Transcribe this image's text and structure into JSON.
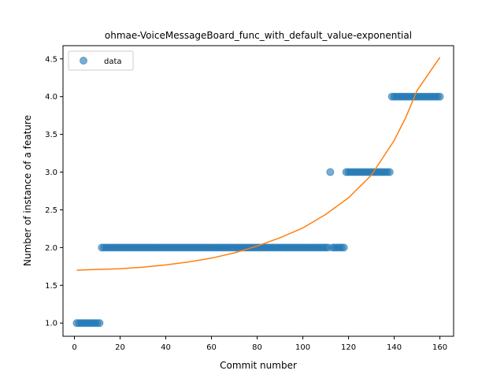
{
  "chart_data": {
    "type": "scatter",
    "title": "ohmae-VoiceMessageBoard_func_with_default_value-exponential",
    "xlabel": "Commit number",
    "ylabel": "Number of instance of a feature",
    "xlim": [
      -5,
      166
    ],
    "ylim": [
      0.825,
      4.675
    ],
    "xticks": [
      0,
      20,
      40,
      60,
      80,
      100,
      120,
      140,
      160
    ],
    "yticks": [
      1.0,
      1.5,
      2.0,
      2.5,
      3.0,
      3.5,
      4.0,
      4.5
    ],
    "legend": {
      "position": "top-left",
      "entries": [
        "data"
      ]
    },
    "colors": {
      "data": "#1f77b4",
      "fit": "#ff7f0e"
    },
    "series": [
      {
        "name": "data",
        "kind": "scatter",
        "points": [
          [
            1,
            1
          ],
          [
            2,
            1
          ],
          [
            3,
            1
          ],
          [
            4,
            1
          ],
          [
            5,
            1
          ],
          [
            6,
            1
          ],
          [
            7,
            1
          ],
          [
            8,
            1
          ],
          [
            9,
            1
          ],
          [
            10,
            1
          ],
          [
            11,
            1
          ],
          [
            12,
            2
          ],
          [
            13,
            2
          ],
          [
            14,
            2
          ],
          [
            15,
            2
          ],
          [
            16,
            2
          ],
          [
            17,
            2
          ],
          [
            18,
            2
          ],
          [
            19,
            2
          ],
          [
            20,
            2
          ],
          [
            21,
            2
          ],
          [
            22,
            2
          ],
          [
            23,
            2
          ],
          [
            24,
            2
          ],
          [
            25,
            2
          ],
          [
            26,
            2
          ],
          [
            27,
            2
          ],
          [
            28,
            2
          ],
          [
            29,
            2
          ],
          [
            30,
            2
          ],
          [
            31,
            2
          ],
          [
            32,
            2
          ],
          [
            33,
            2
          ],
          [
            34,
            2
          ],
          [
            35,
            2
          ],
          [
            36,
            2
          ],
          [
            37,
            2
          ],
          [
            38,
            2
          ],
          [
            39,
            2
          ],
          [
            40,
            2
          ],
          [
            41,
            2
          ],
          [
            42,
            2
          ],
          [
            43,
            2
          ],
          [
            44,
            2
          ],
          [
            45,
            2
          ],
          [
            46,
            2
          ],
          [
            47,
            2
          ],
          [
            48,
            2
          ],
          [
            49,
            2
          ],
          [
            50,
            2
          ],
          [
            51,
            2
          ],
          [
            52,
            2
          ],
          [
            53,
            2
          ],
          [
            54,
            2
          ],
          [
            55,
            2
          ],
          [
            56,
            2
          ],
          [
            57,
            2
          ],
          [
            58,
            2
          ],
          [
            59,
            2
          ],
          [
            60,
            2
          ],
          [
            61,
            2
          ],
          [
            62,
            2
          ],
          [
            63,
            2
          ],
          [
            64,
            2
          ],
          [
            65,
            2
          ],
          [
            66,
            2
          ],
          [
            67,
            2
          ],
          [
            68,
            2
          ],
          [
            69,
            2
          ],
          [
            70,
            2
          ],
          [
            71,
            2
          ],
          [
            72,
            2
          ],
          [
            73,
            2
          ],
          [
            74,
            2
          ],
          [
            75,
            2
          ],
          [
            76,
            2
          ],
          [
            77,
            2
          ],
          [
            78,
            2
          ],
          [
            79,
            2
          ],
          [
            80,
            2
          ],
          [
            81,
            2
          ],
          [
            82,
            2
          ],
          [
            83,
            2
          ],
          [
            84,
            2
          ],
          [
            85,
            2
          ],
          [
            86,
            2
          ],
          [
            87,
            2
          ],
          [
            88,
            2
          ],
          [
            89,
            2
          ],
          [
            90,
            2
          ],
          [
            91,
            2
          ],
          [
            92,
            2
          ],
          [
            93,
            2
          ],
          [
            94,
            2
          ],
          [
            95,
            2
          ],
          [
            96,
            2
          ],
          [
            97,
            2
          ],
          [
            98,
            2
          ],
          [
            99,
            2
          ],
          [
            100,
            2
          ],
          [
            101,
            2
          ],
          [
            102,
            2
          ],
          [
            103,
            2
          ],
          [
            104,
            2
          ],
          [
            105,
            2
          ],
          [
            106,
            2
          ],
          [
            107,
            2
          ],
          [
            108,
            2
          ],
          [
            109,
            2
          ],
          [
            110,
            2
          ],
          [
            111,
            2
          ],
          [
            112,
            3
          ],
          [
            113,
            2
          ],
          [
            114,
            2
          ],
          [
            115,
            2
          ],
          [
            116,
            2
          ],
          [
            117,
            2
          ],
          [
            118,
            2
          ],
          [
            119,
            3
          ],
          [
            120,
            3
          ],
          [
            121,
            3
          ],
          [
            122,
            3
          ],
          [
            123,
            3
          ],
          [
            124,
            3
          ],
          [
            125,
            3
          ],
          [
            126,
            3
          ],
          [
            127,
            3
          ],
          [
            128,
            3
          ],
          [
            129,
            3
          ],
          [
            130,
            3
          ],
          [
            131,
            3
          ],
          [
            132,
            3
          ],
          [
            133,
            3
          ],
          [
            134,
            3
          ],
          [
            135,
            3
          ],
          [
            136,
            3
          ],
          [
            137,
            3
          ],
          [
            138,
            3
          ],
          [
            139,
            4
          ],
          [
            140,
            4
          ],
          [
            141,
            4
          ],
          [
            142,
            4
          ],
          [
            143,
            4
          ],
          [
            144,
            4
          ],
          [
            145,
            4
          ],
          [
            146,
            4
          ],
          [
            147,
            4
          ],
          [
            148,
            4
          ],
          [
            149,
            4
          ],
          [
            150,
            4
          ],
          [
            151,
            4
          ],
          [
            152,
            4
          ],
          [
            153,
            4
          ],
          [
            154,
            4
          ],
          [
            155,
            4
          ],
          [
            156,
            4
          ],
          [
            157,
            4
          ],
          [
            158,
            4
          ],
          [
            159,
            4
          ],
          [
            160,
            4
          ]
        ]
      },
      {
        "kind": "line",
        "points": [
          [
            1,
            1.7
          ],
          [
            10,
            1.71
          ],
          [
            20,
            1.72
          ],
          [
            30,
            1.74
          ],
          [
            40,
            1.77
          ],
          [
            50,
            1.81
          ],
          [
            60,
            1.86
          ],
          [
            70,
            1.93
          ],
          [
            80,
            2.02
          ],
          [
            90,
            2.13
          ],
          [
            100,
            2.26
          ],
          [
            110,
            2.44
          ],
          [
            120,
            2.66
          ],
          [
            130,
            2.96
          ],
          [
            140,
            3.42
          ],
          [
            145,
            3.72
          ],
          [
            150,
            4.08
          ],
          [
            155,
            4.3
          ],
          [
            160,
            4.52
          ]
        ]
      }
    ]
  }
}
